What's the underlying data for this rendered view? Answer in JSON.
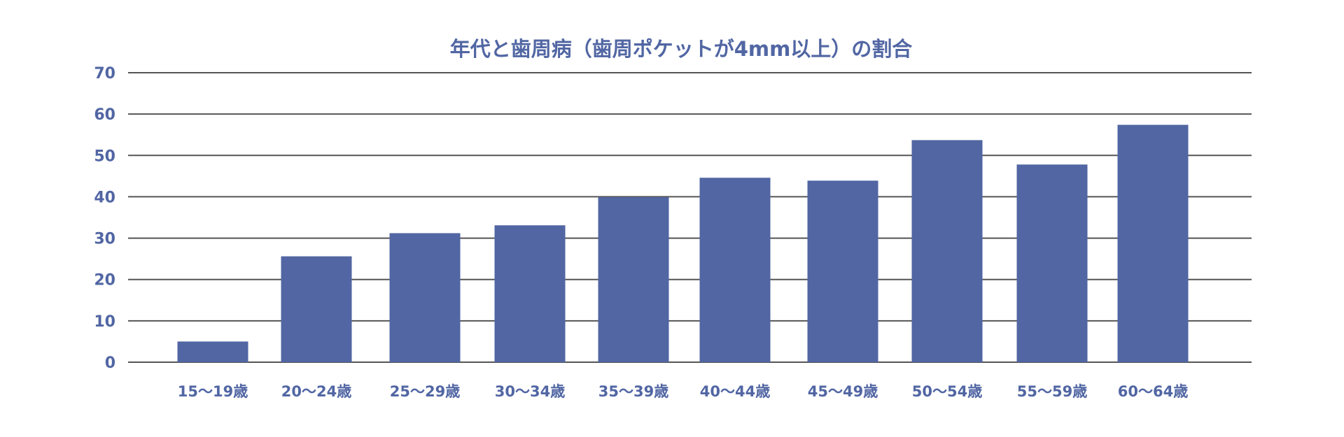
{
  "chart_data": {
    "type": "bar",
    "title": "年代と歯周病（歯周ポケットが4mm以上）の割合",
    "xlabel": "",
    "ylabel": "",
    "categories": [
      "15〜19歳",
      "20〜24歳",
      "25〜29歳",
      "30〜34歳",
      "35〜39歳",
      "40〜44歳",
      "45〜49歳",
      "50〜54歳",
      "55〜59歳",
      "60〜64歳"
    ],
    "values": [
      5.0,
      25.6,
      31.2,
      33.1,
      39.9,
      44.6,
      43.9,
      53.7,
      47.8,
      57.4
    ],
    "ylim": [
      0,
      70
    ],
    "yticks": [
      "0",
      "10",
      "20",
      "30",
      "40",
      "50",
      "60",
      "70"
    ],
    "grid": true,
    "legend": "none",
    "colors": {
      "bar": "#5166a3",
      "text": "#5166a3",
      "grid": "#555555"
    }
  }
}
